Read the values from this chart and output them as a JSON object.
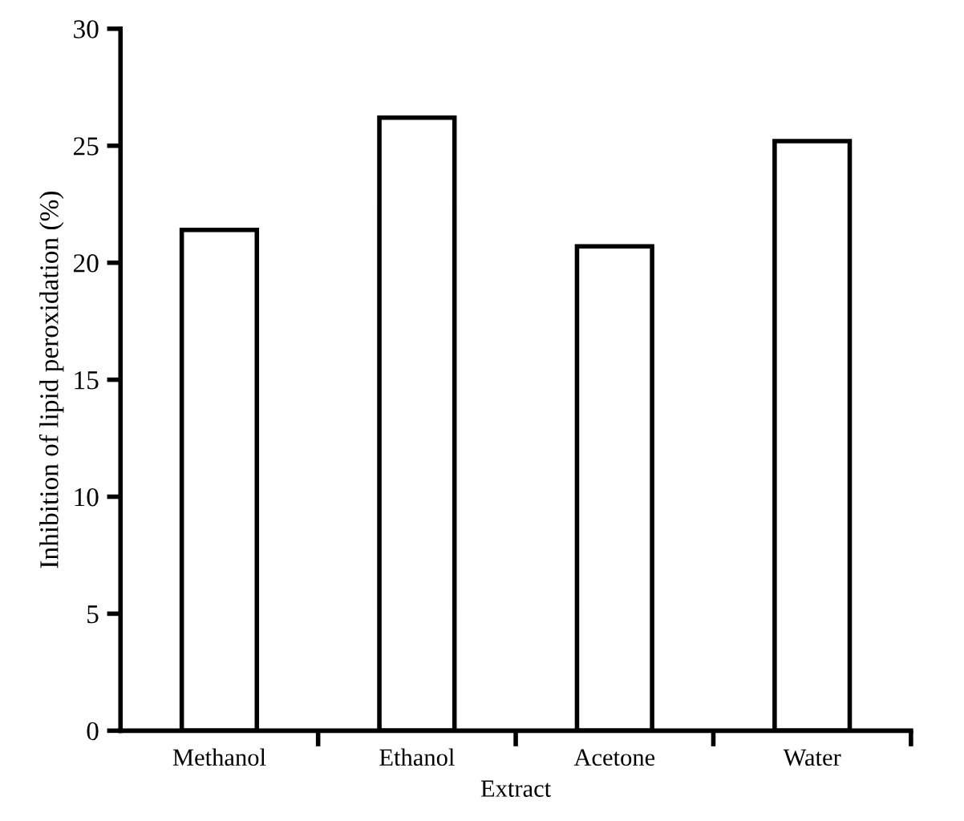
{
  "chart_data": {
    "type": "bar",
    "xlabel": "Extract",
    "ylabel": "Inhibition of lipid peroxidation (%)",
    "categories": [
      "Methanol",
      "Ethanol",
      "Acetone",
      "Water"
    ],
    "values": [
      21.4,
      26.2,
      20.7,
      25.2
    ],
    "color": "#ffffff",
    "ylim": [
      0,
      30
    ],
    "yticks": [
      0,
      5,
      10,
      15,
      20,
      25,
      30
    ],
    "grid": false
  }
}
